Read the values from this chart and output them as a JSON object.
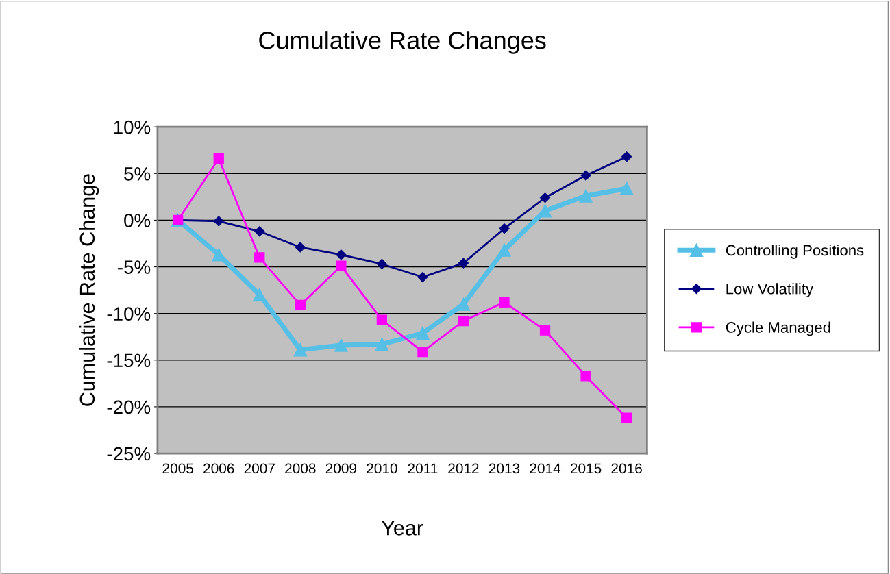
{
  "chart_data": {
    "type": "line",
    "title": "Cumulative Rate Changes",
    "xlabel": "Year",
    "ylabel": "Cumulative Rate Change",
    "categories": [
      "2005",
      "2006",
      "2007",
      "2008",
      "2009",
      "2010",
      "2011",
      "2012",
      "2013",
      "2014",
      "2015",
      "2016"
    ],
    "series": [
      {
        "name": "Controlling Positions",
        "color": "#55bfe6",
        "marker": "triangle",
        "values": [
          0,
          -3.7,
          -8.0,
          -13.9,
          -13.4,
          -13.3,
          -12.1,
          -9.0,
          -3.2,
          1.0,
          2.6,
          3.4
        ]
      },
      {
        "name": "Low Volatility",
        "color": "#000080",
        "marker": "diamond",
        "values": [
          0,
          -0.1,
          -1.2,
          -2.9,
          -3.7,
          -4.7,
          -6.1,
          -4.6,
          -0.9,
          2.4,
          4.8,
          6.8
        ]
      },
      {
        "name": "Cycle Managed",
        "color": "#ff00ff",
        "marker": "square",
        "values": [
          0,
          6.6,
          -4.0,
          -9.1,
          -4.9,
          -10.7,
          -14.1,
          -10.8,
          -8.8,
          -11.8,
          -16.7,
          -21.2
        ]
      }
    ],
    "ylim": [
      -25,
      10
    ],
    "yticks": [
      {
        "value": -25,
        "label": "-25%"
      },
      {
        "value": -20,
        "label": "-20%"
      },
      {
        "value": -15,
        "label": "-15%"
      },
      {
        "value": -10,
        "label": "-10%"
      },
      {
        "value": -5,
        "label": "-5%"
      },
      {
        "value": 0,
        "label": "0%"
      },
      {
        "value": 5,
        "label": "5%"
      },
      {
        "value": 10,
        "label": "10%"
      }
    ],
    "grid": "y",
    "legend": "right",
    "line_style": "solid"
  }
}
